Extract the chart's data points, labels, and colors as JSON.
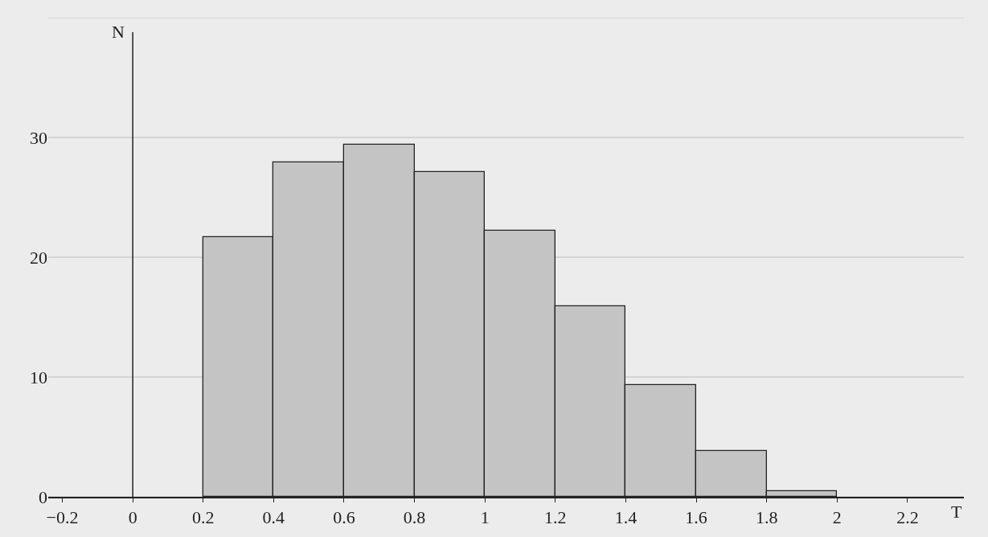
{
  "chart_data": {
    "type": "histogram",
    "xlabel": "T",
    "ylabel": "N",
    "bins": [
      0.2,
      0.4,
      0.6,
      0.8,
      1.0,
      1.2,
      1.4,
      1.6,
      1.8,
      2.0
    ],
    "values": [
      21.7,
      27.9,
      29.4,
      27.1,
      22.2,
      15.9,
      9.3,
      3.8,
      0.5
    ],
    "color": "#c4c4c4",
    "xlim": [
      -0.24,
      2.36
    ],
    "xticks": [
      {
        "value": -0.2,
        "label": "−0.2"
      },
      0,
      0.2,
      0.4,
      0.6,
      0.8,
      1,
      1.2,
      1.4,
      1.6,
      1.8,
      2,
      2.2
    ],
    "ylim": [
      0,
      40
    ],
    "yticks": [
      0,
      10,
      20,
      30,
      {
        "value": 40,
        "label": null
      }
    ],
    "grid": "y"
  }
}
